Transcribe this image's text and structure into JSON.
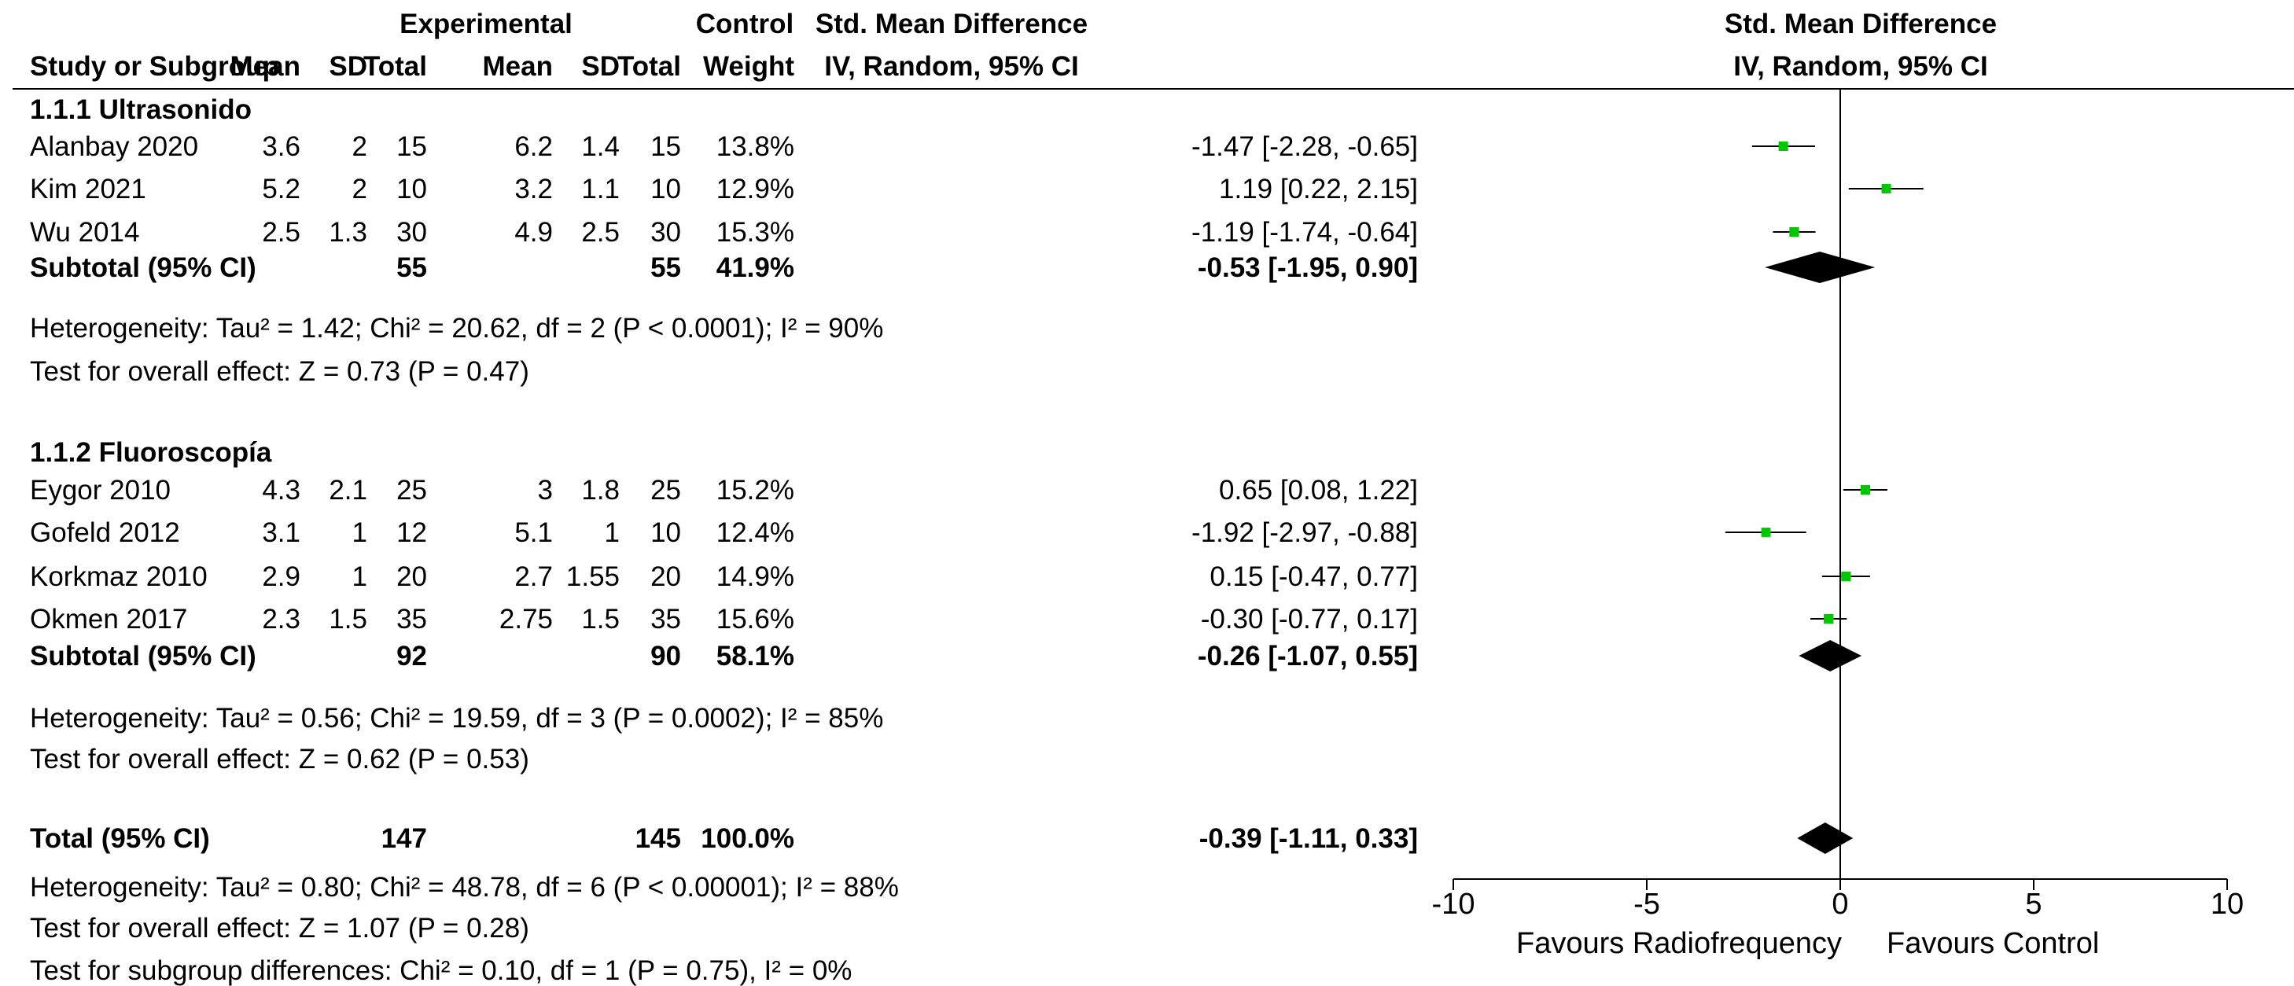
{
  "chart_data": {
    "type": "forest",
    "header": {
      "group_experimental": "Experimental",
      "group_control": "Control",
      "col_study": "Study or Subgroup",
      "col_mean": "Mean",
      "col_sd": "SD",
      "col_total": "Total",
      "col_weight": "Weight",
      "effect_title": "Std. Mean Difference",
      "effect_method": "IV, Random, 95% CI",
      "plot_title": "Std. Mean Difference",
      "plot_method": "IV, Random, 95% CI"
    },
    "subgroups": [
      {
        "label": "1.1.1 Ultrasonido",
        "studies": [
          {
            "name": "Alanbay 2020",
            "e_mean": "3.6",
            "e_sd": "2",
            "e_total": "15",
            "c_mean": "6.2",
            "c_sd": "1.4",
            "c_total": "15",
            "weight": "13.8%",
            "ci_text": "-1.47 [-2.28, -0.65]",
            "est": -1.47,
            "lo": -2.28,
            "hi": -0.65
          },
          {
            "name": "Kim 2021",
            "e_mean": "5.2",
            "e_sd": "2",
            "e_total": "10",
            "c_mean": "3.2",
            "c_sd": "1.1",
            "c_total": "10",
            "weight": "12.9%",
            "ci_text": "1.19 [0.22, 2.15]",
            "est": 1.19,
            "lo": 0.22,
            "hi": 2.15
          },
          {
            "name": "Wu 2014",
            "e_mean": "2.5",
            "e_sd": "1.3",
            "e_total": "30",
            "c_mean": "4.9",
            "c_sd": "2.5",
            "c_total": "30",
            "weight": "15.3%",
            "ci_text": "-1.19 [-1.74, -0.64]",
            "est": -1.19,
            "lo": -1.74,
            "hi": -0.64
          }
        ],
        "subtotal": {
          "label": "Subtotal (95% CI)",
          "e_total": "55",
          "c_total": "55",
          "weight": "41.9%",
          "ci_text": "-0.53 [-1.95, 0.90]",
          "est": -0.53,
          "lo": -1.95,
          "hi": 0.9
        },
        "heterogeneity": "Heterogeneity: Tau² = 1.42; Chi² = 20.62, df = 2 (P < 0.0001); I² = 90%",
        "overall": "Test for overall effect: Z = 0.73 (P = 0.47)"
      },
      {
        "label": "1.1.2 Fluoroscopía",
        "studies": [
          {
            "name": "Eygor 2010",
            "e_mean": "4.3",
            "e_sd": "2.1",
            "e_total": "25",
            "c_mean": "3",
            "c_sd": "1.8",
            "c_total": "25",
            "weight": "15.2%",
            "ci_text": "0.65 [0.08, 1.22]",
            "est": 0.65,
            "lo": 0.08,
            "hi": 1.22
          },
          {
            "name": "Gofeld 2012",
            "e_mean": "3.1",
            "e_sd": "1",
            "e_total": "12",
            "c_mean": "5.1",
            "c_sd": "1",
            "c_total": "10",
            "weight": "12.4%",
            "ci_text": "-1.92 [-2.97, -0.88]",
            "est": -1.92,
            "lo": -2.97,
            "hi": -0.88
          },
          {
            "name": "Korkmaz 2010",
            "e_mean": "2.9",
            "e_sd": "1",
            "e_total": "20",
            "c_mean": "2.7",
            "c_sd": "1.55",
            "c_total": "20",
            "weight": "14.9%",
            "ci_text": "0.15 [-0.47, 0.77]",
            "est": 0.15,
            "lo": -0.47,
            "hi": 0.77
          },
          {
            "name": "Okmen 2017",
            "e_mean": "2.3",
            "e_sd": "1.5",
            "e_total": "35",
            "c_mean": "2.75",
            "c_sd": "1.5",
            "c_total": "35",
            "weight": "15.6%",
            "ci_text": "-0.30 [-0.77, 0.17]",
            "est": -0.3,
            "lo": -0.77,
            "hi": 0.17
          }
        ],
        "subtotal": {
          "label": "Subtotal (95% CI)",
          "e_total": "92",
          "c_total": "90",
          "weight": "58.1%",
          "ci_text": "-0.26 [-1.07, 0.55]",
          "est": -0.26,
          "lo": -1.07,
          "hi": 0.55
        },
        "heterogeneity": "Heterogeneity: Tau² = 0.56; Chi² = 19.59, df = 3 (P = 0.0002); I² = 85%",
        "overall": "Test for overall effect: Z = 0.62 (P = 0.53)"
      }
    ],
    "total": {
      "label": "Total (95% CI)",
      "e_total": "147",
      "c_total": "145",
      "weight": "100.0%",
      "ci_text": "-0.39 [-1.11, 0.33]",
      "est": -0.39,
      "lo": -1.11,
      "hi": 0.33
    },
    "total_heterogeneity": "Heterogeneity: Tau² = 0.80; Chi² = 48.78, df = 6 (P < 0.00001); I² = 88%",
    "total_overall": "Test for overall effect: Z = 1.07 (P = 0.28)",
    "subgroup_diff": "Test for subgroup differences: Chi² = 0.10, df = 1 (P = 0.75), I² = 0%",
    "axis": {
      "xlim": [
        -10,
        10
      ],
      "ticks": [
        -10,
        -5,
        0,
        5,
        10
      ]
    },
    "favours_left": "Favours Radiofrequency",
    "favours_right": "Favours Control",
    "colors": {
      "study_marker": "#00c800",
      "diamond": "#000000",
      "text": "#000000"
    }
  }
}
